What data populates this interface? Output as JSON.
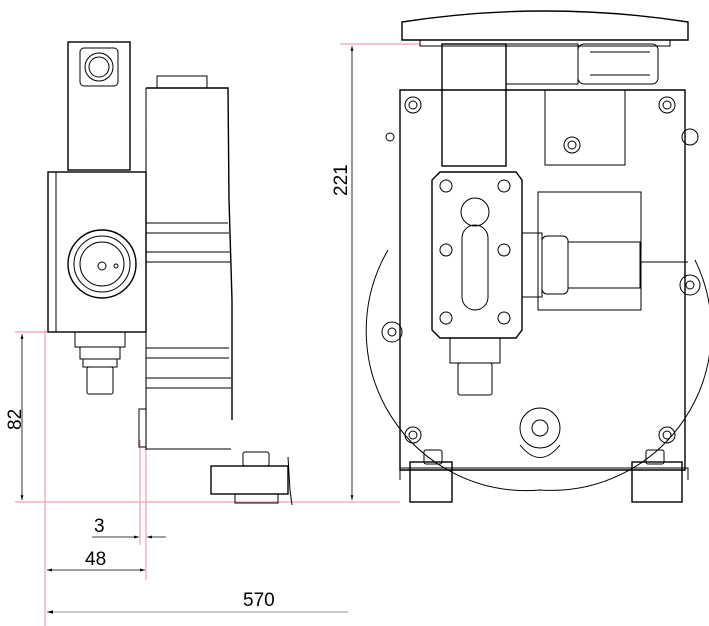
{
  "dimensions": {
    "height_total": "221",
    "height_foot_to_valve": "82",
    "offset_small": "3",
    "offset_valve": "48",
    "length_total": "570"
  },
  "colors": {
    "reference_lines": "#f0a0b0",
    "drawing": "#000000"
  }
}
